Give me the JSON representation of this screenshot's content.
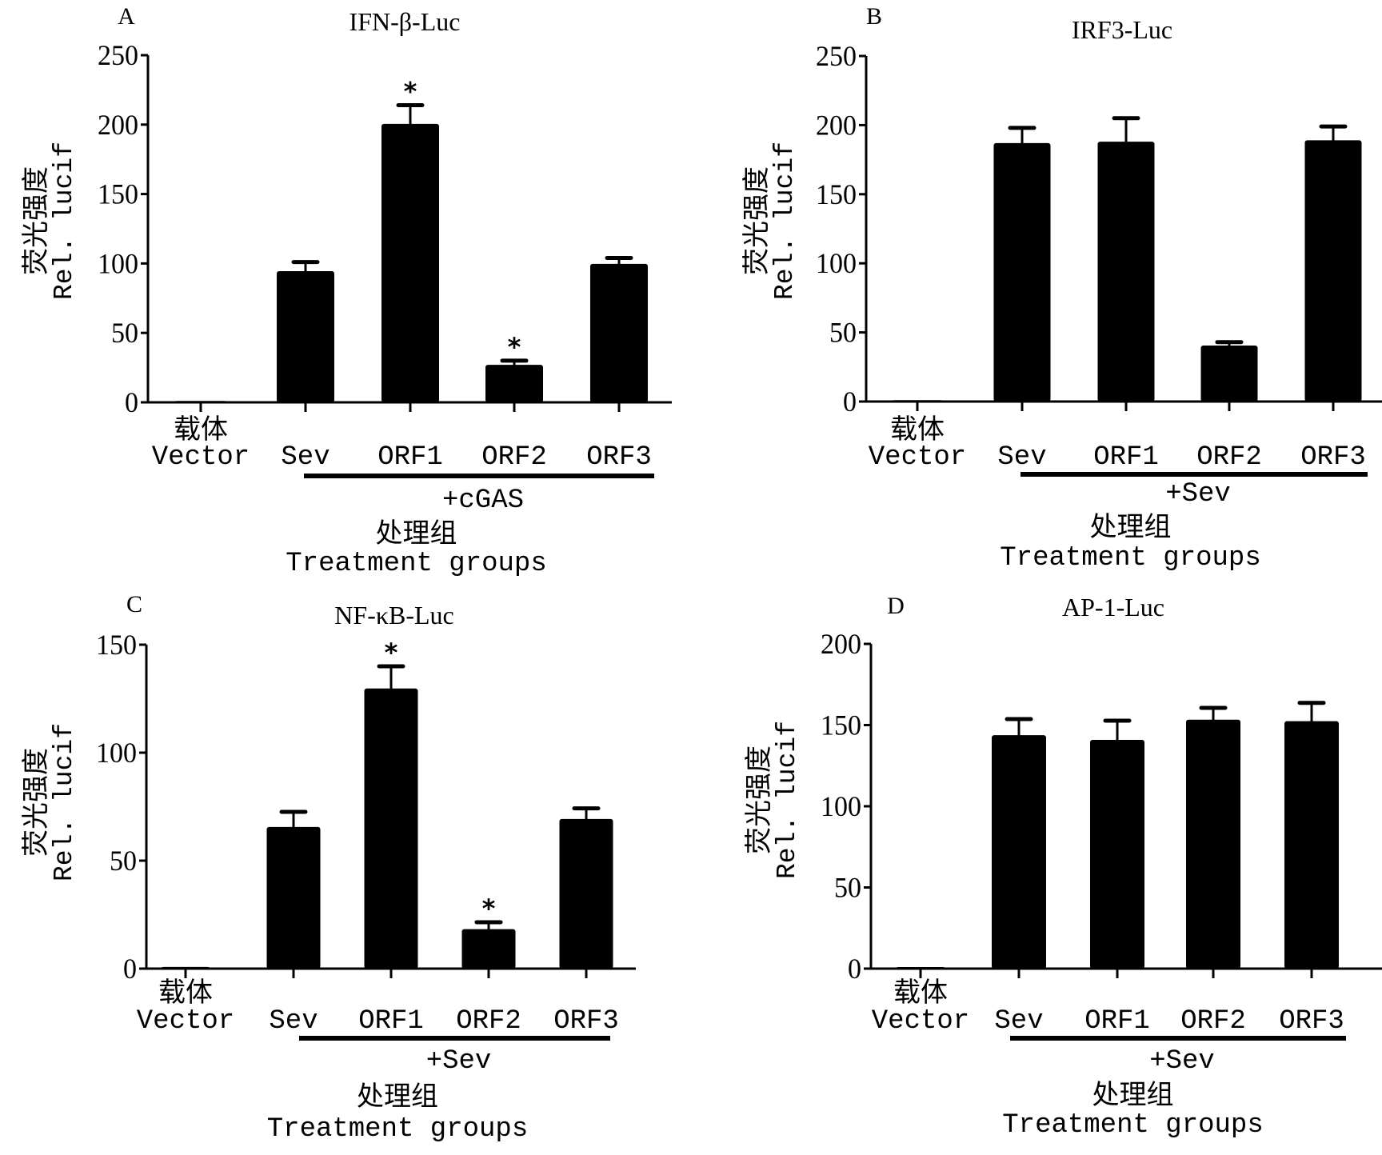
{
  "chart_data": [
    {
      "panel": "A",
      "type": "bar",
      "title": "IFN-β-Luc",
      "categories": [
        "Vector",
        "Sev",
        "ORF1",
        "ORF2",
        "ORF3"
      ],
      "category_labels_cn": [
        "载体",
        "",
        "",
        "",
        ""
      ],
      "values": [
        1,
        94.5,
        200.5,
        27,
        99.7
      ],
      "error": [
        0,
        6.5,
        13.5,
        3,
        4.3
      ],
      "significance": [
        "",
        "",
        "*",
        "*",
        ""
      ],
      "ylim": [
        0,
        250
      ],
      "yticks": [
        0,
        50,
        100,
        150,
        200,
        250
      ],
      "ylabel_cn": "荧光强度",
      "ylabel": "Rel. lucif",
      "group_bracket_label": "+cGAS",
      "xlabel_cn": "处理组",
      "xlabel": "Treatment groups"
    },
    {
      "panel": "B",
      "type": "bar",
      "title": "IRF3-Luc",
      "categories": [
        "Vector",
        "Sev",
        "ORF1",
        "ORF2",
        "ORF3"
      ],
      "category_labels_cn": [
        "载体",
        "",
        "",
        "",
        ""
      ],
      "values": [
        1,
        187,
        188,
        40.5,
        189
      ],
      "error": [
        0,
        11,
        17,
        2.5,
        10
      ],
      "significance": [
        "",
        "",
        "",
        "",
        ""
      ],
      "ylim": [
        0,
        250
      ],
      "yticks": [
        0,
        50,
        100,
        150,
        200,
        250
      ],
      "ylabel_cn": "荧光强度",
      "ylabel": "Rel. lucif",
      "group_bracket_label": "+Sev",
      "xlabel_cn": "处理组",
      "xlabel": "Treatment groups"
    },
    {
      "panel": "C",
      "type": "bar",
      "title": "NF-κB-Luc",
      "categories": [
        "Vector",
        "Sev",
        "ORF1",
        "ORF2",
        "ORF3"
      ],
      "category_labels_cn": [
        "载体",
        "",
        "",
        "",
        ""
      ],
      "values": [
        0.8,
        65.6,
        129.7,
        18.3,
        69.3
      ],
      "error": [
        0,
        7,
        10.3,
        3.2,
        4.9
      ],
      "significance": [
        "",
        "",
        "*",
        "*",
        ""
      ],
      "ylim": [
        0,
        150
      ],
      "yticks": [
        0,
        50,
        100,
        150
      ],
      "ylabel_cn": "荧光强度",
      "ylabel": "Rel. lucif",
      "group_bracket_label": "+Sev",
      "xlabel_cn": "处理组",
      "xlabel": "Treatment groups"
    },
    {
      "panel": "D",
      "type": "bar",
      "title": "AP-1-Luc",
      "categories": [
        "Vector",
        "Sev",
        "ORF1",
        "ORF2",
        "ORF3"
      ],
      "category_labels_cn": [
        "载体",
        "",
        "",
        "",
        ""
      ],
      "values": [
        1,
        143.8,
        140.9,
        153.3,
        152.4
      ],
      "error": [
        0,
        9.9,
        11.8,
        7.3,
        11.3
      ],
      "significance": [
        "",
        "",
        "",
        "",
        ""
      ],
      "ylim": [
        0,
        200
      ],
      "yticks": [
        0,
        50,
        100,
        150,
        200
      ],
      "ylabel_cn": "荧光强度",
      "ylabel": "Rel. lucif",
      "group_bracket_label": "+Sev",
      "xlabel_cn": "处理组",
      "xlabel": "Treatment groups"
    }
  ]
}
